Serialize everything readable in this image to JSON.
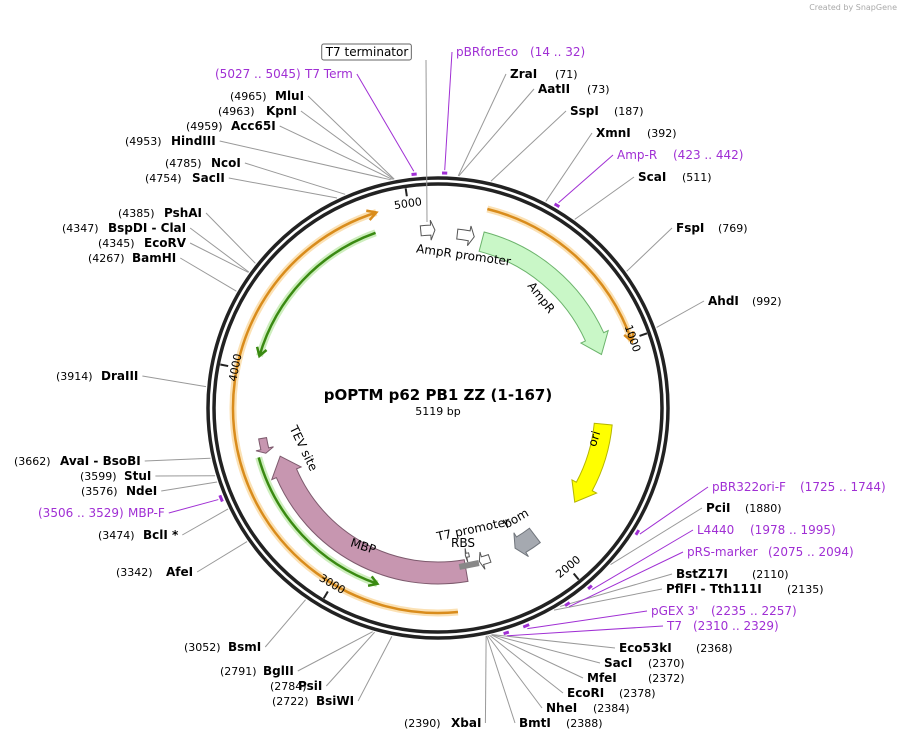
{
  "credit": "Created by SnapGene",
  "title": "pOPTM p62 PB1 ZZ (1-167)",
  "length": {
    "value": 5119,
    "label": "5119 bp"
  },
  "ruler": [
    1000,
    2000,
    3000,
    4000,
    5000
  ],
  "features": [
    "T7 terminator",
    "AmpR promoter",
    "AmpR",
    "ori",
    "bom",
    "T7 promoter",
    "RBS",
    "MBP",
    "TEV site"
  ],
  "sites": [
    {
      "name": "ZraI",
      "position": {
        "value": 71,
        "label": "(71)"
      }
    },
    {
      "name": "AatII",
      "position": {
        "value": 73,
        "label": "(73)"
      }
    },
    {
      "name": "SspI",
      "position": {
        "value": 187,
        "label": "(187)"
      }
    },
    {
      "name": "XmnI",
      "position": {
        "value": 392,
        "label": "(392)"
      }
    },
    {
      "name": "ScaI",
      "position": {
        "value": 511,
        "label": "(511)"
      }
    },
    {
      "name": "FspI",
      "position": {
        "value": 769,
        "label": "(769)"
      }
    },
    {
      "name": "AhdI",
      "position": {
        "value": 992,
        "label": "(992)"
      }
    },
    {
      "name": "PciI",
      "position": {
        "value": 1880,
        "label": "(1880)"
      }
    },
    {
      "name": "BstZ17I",
      "position": {
        "value": 2110,
        "label": "(2110)"
      }
    },
    {
      "name": "PflFI - Tth111I",
      "position": {
        "value": 2135,
        "label": "(2135)"
      }
    },
    {
      "name": "Eco53kI",
      "position": {
        "value": 2368,
        "label": "(2368)"
      }
    },
    {
      "name": "SacI",
      "position": {
        "value": 2370,
        "label": "(2370)"
      }
    },
    {
      "name": "MfeI",
      "position": {
        "value": 2372,
        "label": "(2372)"
      }
    },
    {
      "name": "EcoRI",
      "position": {
        "value": 2378,
        "label": "(2378)"
      }
    },
    {
      "name": "NheI",
      "position": {
        "value": 2384,
        "label": "(2384)"
      }
    },
    {
      "name": "BmtI",
      "position": {
        "value": 2388,
        "label": "(2388)"
      }
    },
    {
      "name": "XbaI",
      "position": {
        "value": 2390,
        "label": "(2390)"
      }
    },
    {
      "name": "BsiWI",
      "position": {
        "value": 2722,
        "label": "(2722)"
      }
    },
    {
      "name": "PsiI",
      "position": {
        "value": 2784,
        "label": "(2784)"
      }
    },
    {
      "name": "BglII",
      "position": {
        "value": 2791,
        "label": "(2791)"
      }
    },
    {
      "name": "BsmI",
      "position": {
        "value": 3052,
        "label": "(3052)"
      }
    },
    {
      "name": "AfeI",
      "position": {
        "value": 3342,
        "label": "(3342)"
      }
    },
    {
      "name": "BclI *",
      "position": {
        "value": 3474,
        "label": "(3474)"
      }
    },
    {
      "name": "NdeI",
      "position": {
        "value": 3576,
        "label": "(3576)"
      }
    },
    {
      "name": "StuI",
      "position": {
        "value": 3599,
        "label": "(3599)"
      }
    },
    {
      "name": "AvaI - BsoBI",
      "position": {
        "value": 3662,
        "label": "(3662)"
      }
    },
    {
      "name": "DraIII",
      "position": {
        "value": 3914,
        "label": "(3914)"
      }
    },
    {
      "name": "BamHI",
      "position": {
        "value": 4267,
        "label": "(4267)"
      }
    },
    {
      "name": "EcoRV",
      "position": {
        "value": 4345,
        "label": "(4345)"
      }
    },
    {
      "name": "BspDI - ClaI",
      "position": {
        "value": 4347,
        "label": "(4347)"
      }
    },
    {
      "name": "PshAI",
      "position": {
        "value": 4385,
        "label": "(4385)"
      }
    },
    {
      "name": "SacII",
      "position": {
        "value": 4754,
        "label": "(4754)"
      }
    },
    {
      "name": "NcoI",
      "position": {
        "value": 4785,
        "label": "(4785)"
      }
    },
    {
      "name": "HindIII",
      "position": {
        "value": 4953,
        "label": "(4953)"
      }
    },
    {
      "name": "Acc65I",
      "position": {
        "value": 4959,
        "label": "(4959)"
      }
    },
    {
      "name": "KpnI",
      "position": {
        "value": 4963,
        "label": "(4963)"
      }
    },
    {
      "name": "MluI",
      "position": {
        "value": 4965,
        "label": "(4965)"
      }
    }
  ],
  "primers": [
    {
      "name": "pBRforEco",
      "range": {
        "start": 14,
        "end": 32,
        "label": "(14 .. 32)"
      }
    },
    {
      "name": "Amp-R",
      "range": {
        "start": 423,
        "end": 442,
        "label": "(423 .. 442)"
      }
    },
    {
      "name": "pBR322ori-F",
      "range": {
        "start": 1725,
        "end": 1744,
        "label": "(1725 .. 1744)"
      }
    },
    {
      "name": "L4440",
      "range": {
        "start": 1978,
        "end": 1995,
        "label": "(1978 .. 1995)"
      }
    },
    {
      "name": "pRS-marker",
      "range": {
        "start": 2075,
        "end": 2094,
        "label": "(2075 .. 2094)"
      }
    },
    {
      "name": "pGEX 3'",
      "range": {
        "start": 2235,
        "end": 2257,
        "label": "(2235 .. 2257)"
      }
    },
    {
      "name": "T7",
      "range": {
        "start": 2310,
        "end": 2329,
        "label": "(2310 .. 2329)"
      }
    },
    {
      "name": "MBP-F",
      "range": {
        "start": 3506,
        "end": 3529,
        "label": "(3506 .. 3529)"
      }
    },
    {
      "name": "T7 Term",
      "range": {
        "start": 5027,
        "end": 5045,
        "label": "(5027 .. 5045)"
      }
    }
  ]
}
